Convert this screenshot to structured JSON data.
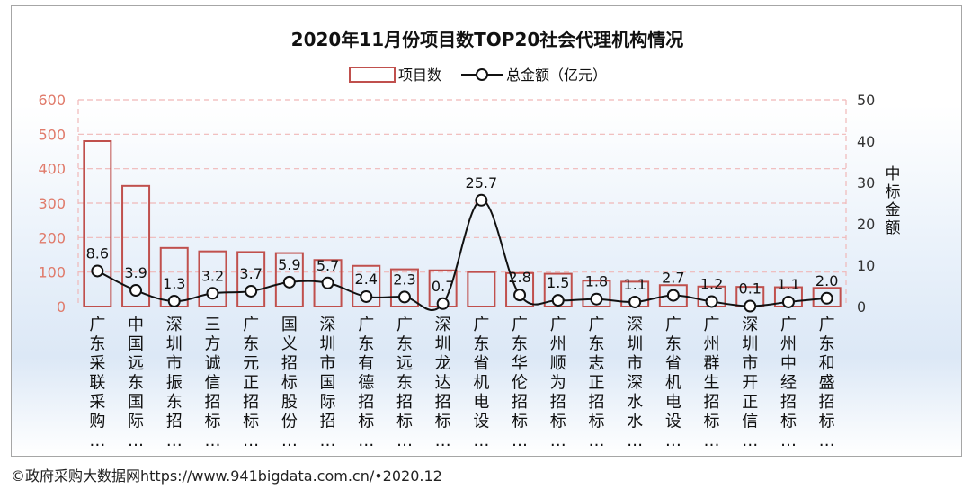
{
  "chart_data": {
    "type": "bar",
    "title": "2020年11月份项目数TOP20社会代理机构情况",
    "legend": {
      "placement": "top-center",
      "bar_label": "项目数",
      "line_label": "总金额（亿元）"
    },
    "y_left": {
      "ticks": [
        "600",
        "500",
        "400",
        "300",
        "200",
        "100",
        "0"
      ],
      "ylim": [
        0,
        600
      ],
      "color": "#e07a6a"
    },
    "y_right": {
      "label": "中标金额",
      "ticks": [
        "50",
        "40",
        "30",
        "20",
        "10",
        "0"
      ],
      "ylim": [
        0,
        50
      ],
      "color": "#333333"
    },
    "grid": true,
    "categories": [
      "广东采联采购…",
      "中国远东国际…",
      "深圳市振东招…",
      "三方诚信招标…",
      "广东元正招标…",
      "国义招标股份…",
      "深圳市国际招…",
      "广东有德招标…",
      "广东远东招标…",
      "深圳龙达招标…",
      "广东省机电设…",
      "广东华伦招标…",
      "广州顺为招标…",
      "广东志正招标…",
      "深圳市深水水…",
      "广东省机电设…",
      "广州群生招标…",
      "深圳市开正信…",
      "广州中经招标…",
      "广东和盛招标…"
    ],
    "series": [
      {
        "name": "项目数",
        "kind": "bar",
        "values": [
          480,
          350,
          170,
          160,
          158,
          155,
          135,
          118,
          108,
          105,
          100,
          97,
          95,
          75,
          72,
          62,
          58,
          57,
          56,
          54
        ]
      },
      {
        "name": "总金额（亿元）",
        "kind": "line",
        "values": [
          8.6,
          3.9,
          1.3,
          3.2,
          3.7,
          5.9,
          5.7,
          2.4,
          2.3,
          0.7,
          25.7,
          2.8,
          1.5,
          1.8,
          1.1,
          2.7,
          1.2,
          0.1,
          1.1,
          2.0
        ],
        "labels": [
          "8.6",
          "3.9",
          "1.3",
          "3.2",
          "3.7",
          "5.9",
          "5.7",
          "2.4",
          "2.3",
          "0.7",
          "25.7",
          "2.8",
          "1.5",
          "1.8",
          "1.1",
          "2.7",
          "1.2",
          "0.1",
          "1.1",
          "2.0"
        ]
      }
    ],
    "colors": {
      "bar_stroke": "#c0504d",
      "line": "#111111",
      "grid": "#f0b8b8",
      "left_axis": "#e07a6a"
    }
  },
  "footer": {
    "source": "©政府采购大数据网https://www.941bigdata.com.cn/•2020.12"
  }
}
